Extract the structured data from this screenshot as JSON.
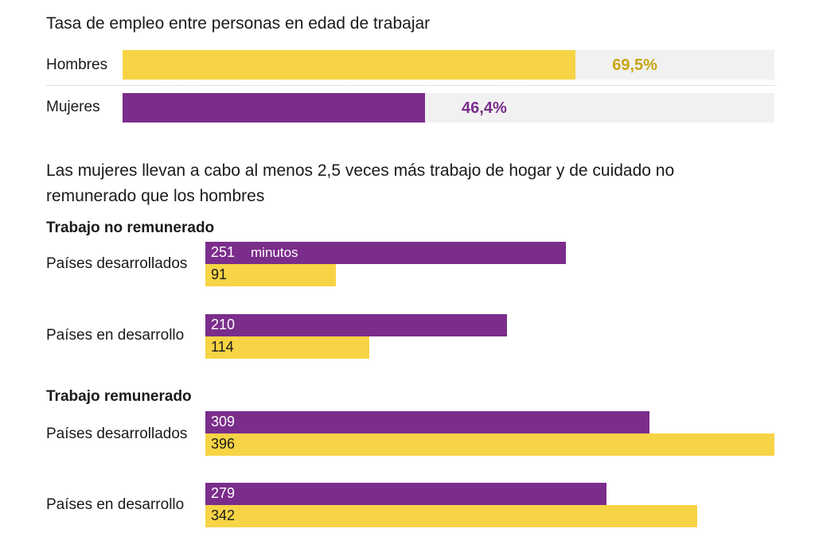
{
  "colors": {
    "men": "#f7d445",
    "women": "#7b2d8b",
    "men_text": "#c9a512",
    "track": "#f1f1f1"
  },
  "chart_data": [
    {
      "type": "bar",
      "title": "Tasa de empleo entre personas en edad de trabajar",
      "categories": [
        "Hombres",
        "Mujeres"
      ],
      "values": [
        69.5,
        46.4
      ],
      "value_labels": [
        "69,5%",
        "46,4%"
      ],
      "xlim": [
        0,
        100
      ]
    },
    {
      "type": "bar",
      "title": "Las mujeres llevan a cabo al menos 2,5 veces más trabajo de hogar y de cuidado no remunerado que los hombres",
      "unit": "minutos",
      "xlim": [
        0,
        396
      ],
      "groups": [
        {
          "name": "Trabajo no remunerado",
          "categories": [
            "Países desarrollados",
            "Países en desarrollo"
          ],
          "series": [
            {
              "color": "#7b2d8b",
              "values": [
                251,
                210
              ]
            },
            {
              "color": "#f7d445",
              "values": [
                91,
                114
              ]
            }
          ]
        },
        {
          "name": "Trabajo remunerado",
          "categories": [
            "Países desarrollados",
            "Países en desarrollo"
          ],
          "series": [
            {
              "color": "#7b2d8b",
              "values": [
                309,
                279
              ]
            },
            {
              "color": "#f7d445",
              "values": [
                396,
                342
              ]
            }
          ]
        }
      ]
    }
  ]
}
